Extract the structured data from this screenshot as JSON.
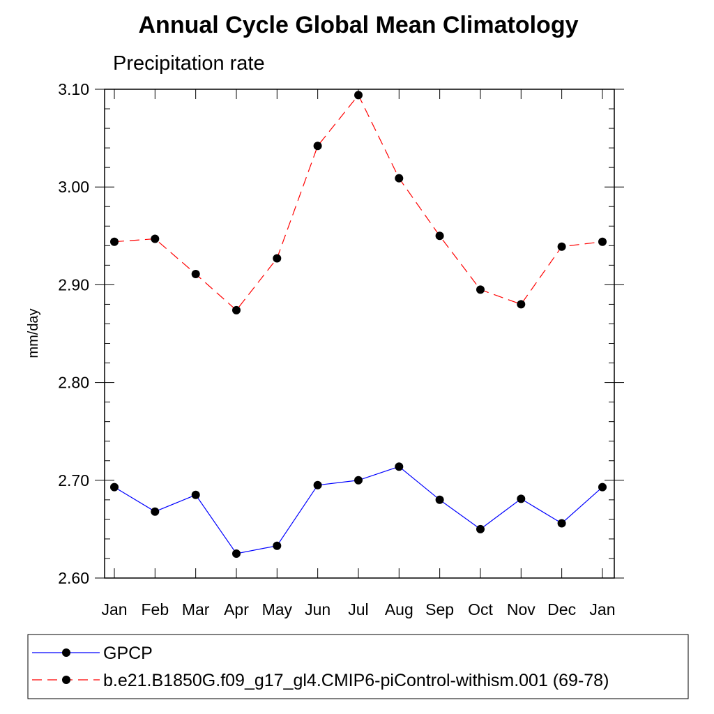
{
  "chart_data": {
    "type": "line",
    "title": "Annual Cycle Global Mean Climatology",
    "subtitle": "Precipitation rate",
    "ylabel": "mm/day",
    "xlabel": "",
    "categories": [
      "Jan",
      "Feb",
      "Mar",
      "Apr",
      "May",
      "Jun",
      "Jul",
      "Aug",
      "Sep",
      "Oct",
      "Nov",
      "Dec",
      "Jan"
    ],
    "ylim": [
      2.6,
      3.1
    ],
    "yticks": [
      "2.60",
      "2.70",
      "2.80",
      "2.90",
      "3.00",
      "3.10"
    ],
    "grid": false,
    "legend_position": "bottom",
    "series": [
      {
        "name": "GPCP",
        "color": "#0000ff",
        "line_style": "solid",
        "marker": "filled-circle",
        "values": [
          2.693,
          2.668,
          2.685,
          2.625,
          2.633,
          2.695,
          2.7,
          2.714,
          2.68,
          2.65,
          2.681,
          2.656,
          2.693
        ]
      },
      {
        "name": "b.e21.B1850G.f09_g17_gl4.CMIP6-piControl-withism.001 (69-78)",
        "color": "#ff0000",
        "line_style": "dashed",
        "marker": "filled-circle",
        "values": [
          2.944,
          2.947,
          2.911,
          2.874,
          2.927,
          3.042,
          3.094,
          3.009,
          2.95,
          2.895,
          2.88,
          2.939,
          2.944
        ]
      }
    ]
  }
}
